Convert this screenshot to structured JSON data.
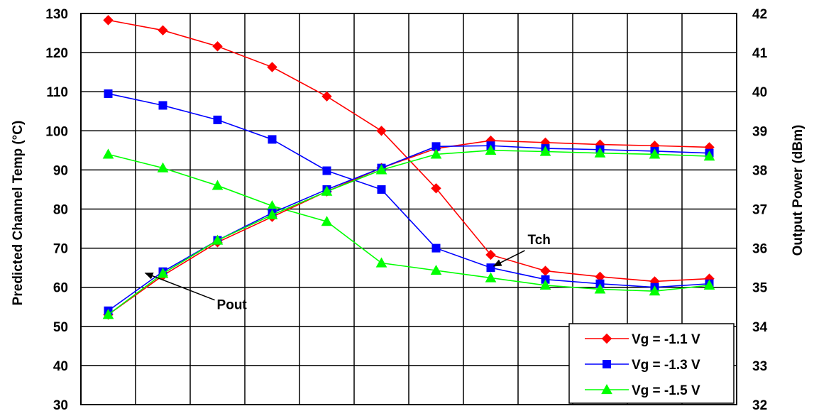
{
  "chart_data": {
    "type": "line",
    "title": "",
    "xlabel": "",
    "x_categories": 12,
    "y_left": {
      "label": "Predicted Channel Temp (°C)",
      "lim": [
        30,
        130
      ],
      "ticks": [
        "30",
        "40",
        "50",
        "60",
        "70",
        "80",
        "90",
        "100",
        "110",
        "120",
        "130"
      ]
    },
    "y_right": {
      "label": "Output Power (dBm)",
      "lim": [
        32,
        42
      ],
      "ticks": [
        "32",
        "33",
        "34",
        "35",
        "36",
        "37",
        "38",
        "39",
        "40",
        "41",
        "42"
      ]
    },
    "grid": true,
    "legend_position": "bottom-right",
    "series": [
      {
        "name": "Vg = -1.1 V",
        "color": "#ff0000",
        "marker": "diamond",
        "quantity": "Tch",
        "axis": "left",
        "values": [
          128.3,
          125.7,
          121.6,
          116.3,
          108.8,
          100.0,
          85.3,
          68.3,
          64.2,
          62.7,
          61.5,
          62.2
        ]
      },
      {
        "name": "Vg = -1.3 V",
        "color": "#0000ff",
        "marker": "square",
        "quantity": "Tch",
        "axis": "left",
        "values": [
          109.5,
          106.5,
          102.8,
          97.8,
          89.8,
          85.0,
          70.0,
          65.0,
          62.0,
          60.9,
          60.0,
          60.9
        ]
      },
      {
        "name": "Vg = -1.5 V",
        "color": "#00ff00",
        "marker": "triangle",
        "quantity": "Tch",
        "axis": "left",
        "values": [
          94.0,
          90.5,
          86.0,
          80.8,
          76.8,
          66.2,
          64.3,
          62.4,
          60.5,
          59.5,
          59.0,
          60.5
        ]
      },
      {
        "name": "Vg = -1.1 V",
        "color": "#ff0000",
        "marker": "diamond",
        "quantity": "Pout",
        "axis": "right",
        "values": [
          34.3,
          35.3,
          36.15,
          36.8,
          37.45,
          38.05,
          38.55,
          38.75,
          38.7,
          38.65,
          38.62,
          38.58
        ]
      },
      {
        "name": "Vg = -1.3 V",
        "color": "#0000ff",
        "marker": "square",
        "quantity": "Pout",
        "axis": "right",
        "values": [
          34.4,
          35.4,
          36.2,
          36.9,
          37.5,
          38.05,
          38.6,
          38.62,
          38.55,
          38.52,
          38.48,
          38.43
        ]
      },
      {
        "name": "Vg = -1.5 V",
        "color": "#00ff00",
        "marker": "triangle",
        "quantity": "Pout",
        "axis": "right",
        "values": [
          34.3,
          35.35,
          36.2,
          36.85,
          37.45,
          38.0,
          38.4,
          38.5,
          38.47,
          38.43,
          38.4,
          38.35
        ]
      }
    ],
    "annotations": [
      {
        "text": "Tch",
        "anchor_x": 7.5,
        "anchor_value": 65.4,
        "axis": "left"
      },
      {
        "text": "Pout",
        "anchor_x": 1.15,
        "anchor_value": 35.4,
        "axis": "right"
      }
    ],
    "legend": [
      "Vg = -1.1 V",
      "Vg = -1.3 V",
      "Vg = -1.5 V"
    ]
  }
}
